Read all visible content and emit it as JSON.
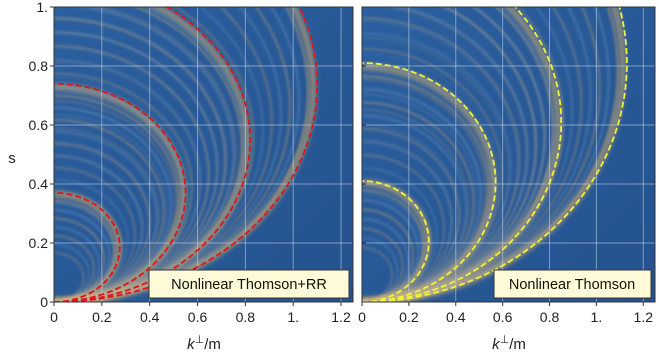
{
  "chart_data": [
    {
      "type": "heatmap",
      "panel_label": "Nonlinear Thomson+RR",
      "xlabel_main": "k",
      "xlabel_sup": "⊥",
      "xlabel_rest": "/m",
      "ylabel": "s",
      "xlim": [
        0,
        1.25
      ],
      "ylim": [
        0,
        1.0
      ],
      "x_ticks": [
        {
          "value": 0,
          "label": "0"
        },
        {
          "value": 0.2,
          "label": "0.2"
        },
        {
          "value": 0.4,
          "label": "0.4"
        },
        {
          "value": 0.6,
          "label": "0.6"
        },
        {
          "value": 0.8,
          "label": "0.8"
        },
        {
          "value": 1.0,
          "label": "1."
        },
        {
          "value": 1.2,
          "label": "1.2"
        }
      ],
      "y_ticks": [
        {
          "value": 0,
          "label": "0"
        },
        {
          "value": 0.2,
          "label": "0.2"
        },
        {
          "value": 0.4,
          "label": "0.4"
        },
        {
          "value": 0.6,
          "label": "0.6"
        },
        {
          "value": 0.8,
          "label": "0.8"
        },
        {
          "value": 1.0,
          "label": "1."
        }
      ],
      "grid": true,
      "legend_position": "bottom-right",
      "curve_color": "#e0141b",
      "background_color": "#2a5a9c",
      "highlight_color": "#f6bf62",
      "harmonic_curves": [
        {
          "n": 1,
          "s_top": 0.37,
          "k_max": 0.275
        },
        {
          "n": 2,
          "s_top": 0.74,
          "k_max": 0.55
        },
        {
          "n": 3,
          "s_top": 1.1,
          "k_max": 0.82
        },
        {
          "n": 4,
          "s_top": 1.47,
          "k_max": 1.1
        }
      ]
    },
    {
      "type": "heatmap",
      "panel_label": "Nonlinear Thomson",
      "xlabel_main": "k",
      "xlabel_sup": "⊥",
      "xlabel_rest": "/m",
      "ylabel": "",
      "xlim": [
        0,
        1.25
      ],
      "ylim": [
        0,
        1.0
      ],
      "x_ticks": [
        {
          "value": 0,
          "label": "0"
        },
        {
          "value": 0.2,
          "label": "0.2"
        },
        {
          "value": 0.4,
          "label": "0.4"
        },
        {
          "value": 0.6,
          "label": "0.6"
        },
        {
          "value": 0.8,
          "label": "0.8"
        },
        {
          "value": 1.0,
          "label": "1."
        },
        {
          "value": 1.2,
          "label": "1.2"
        }
      ],
      "y_ticks": [],
      "grid": true,
      "legend_position": "bottom-right",
      "curve_color": "#eef23a",
      "background_color": "#2a5a9c",
      "highlight_color": "#f6bf62",
      "harmonic_curves": [
        {
          "n": 1,
          "s_top": 0.41,
          "k_max": 0.285
        },
        {
          "n": 2,
          "s_top": 0.81,
          "k_max": 0.57
        },
        {
          "n": 3,
          "s_top": 1.22,
          "k_max": 0.85
        },
        {
          "n": 4,
          "s_top": 1.62,
          "k_max": 1.13
        }
      ]
    }
  ]
}
